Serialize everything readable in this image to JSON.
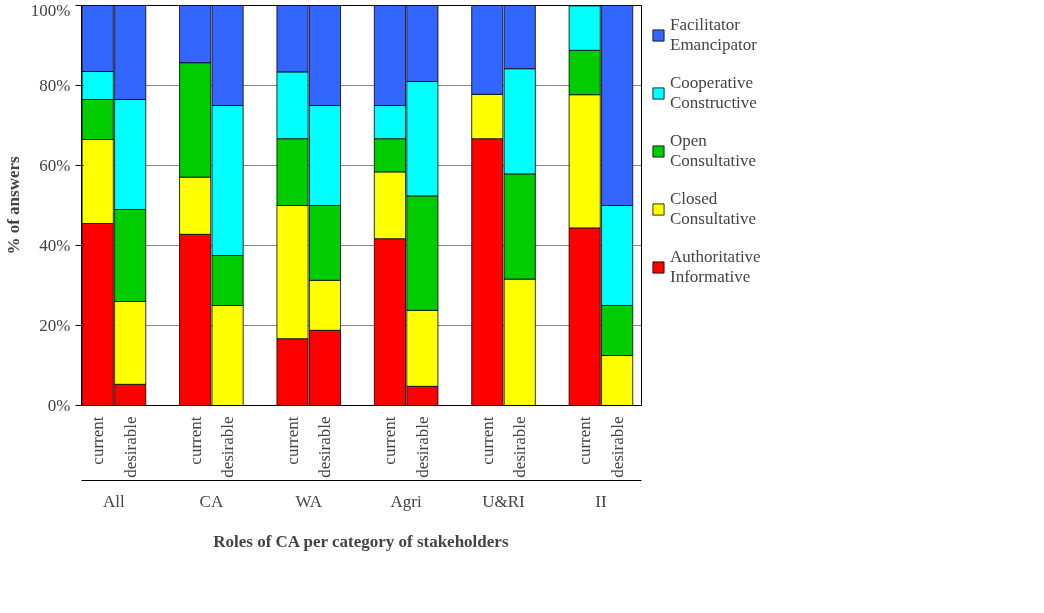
{
  "chart_data": {
    "type": "bar",
    "stacked": true,
    "xlabel": "Roles of CA per category of stakeholders",
    "ylabel": "% of answers",
    "categories": [
      "current",
      "desirable",
      "current",
      "desirable",
      "current",
      "desirable",
      "current",
      "desirable",
      "current",
      "desirable",
      "current",
      "desirable"
    ],
    "annotations": [
      "All",
      "CA",
      "WA",
      "Agri",
      "U&RI",
      "II"
    ],
    "series": [
      {
        "name": "Authoritative\nInformative",
        "color": "#ff0000",
        "values": [
          45.5,
          5.3,
          42.8,
          0,
          16.7,
          18.8,
          41.7,
          4.8,
          66.7,
          0,
          44.4,
          0
        ]
      },
      {
        "name": "Closed\nConsultative",
        "color": "#ffff00",
        "values": [
          21,
          20.7,
          14.3,
          25,
          33.3,
          12.5,
          16.7,
          19,
          11.1,
          31.6,
          33.3,
          12.5
        ]
      },
      {
        "name": "Open\nConsultative",
        "color": "#00cc00",
        "values": [
          10,
          23,
          28.6,
          12.5,
          16.7,
          18.7,
          8.3,
          28.6,
          0,
          26.3,
          11.1,
          12.5
        ]
      },
      {
        "name": "Cooperative\nConstructive",
        "color": "#00ffff",
        "values": [
          7,
          27.5,
          0,
          37.5,
          16.7,
          25,
          8.3,
          28.6,
          0,
          26.3,
          11.1,
          25
        ]
      },
      {
        "name": "Facilitator\nEmancipator",
        "color": "#3366ff",
        "values": [
          16.5,
          23.5,
          14.3,
          25,
          16.6,
          25,
          25,
          19,
          22.2,
          15.8,
          0,
          50
        ]
      }
    ],
    "ylim": [
      0,
      100
    ],
    "yticks": [
      {
        "value": 0,
        "label": "0%"
      },
      {
        "value": 20,
        "label": "20%"
      },
      {
        "value": 40,
        "label": "40%"
      },
      {
        "value": 60,
        "label": "60%"
      },
      {
        "value": 80,
        "label": "80%"
      },
      {
        "value": 100,
        "label": "100%"
      }
    ],
    "grid": "y",
    "legend": "right"
  }
}
